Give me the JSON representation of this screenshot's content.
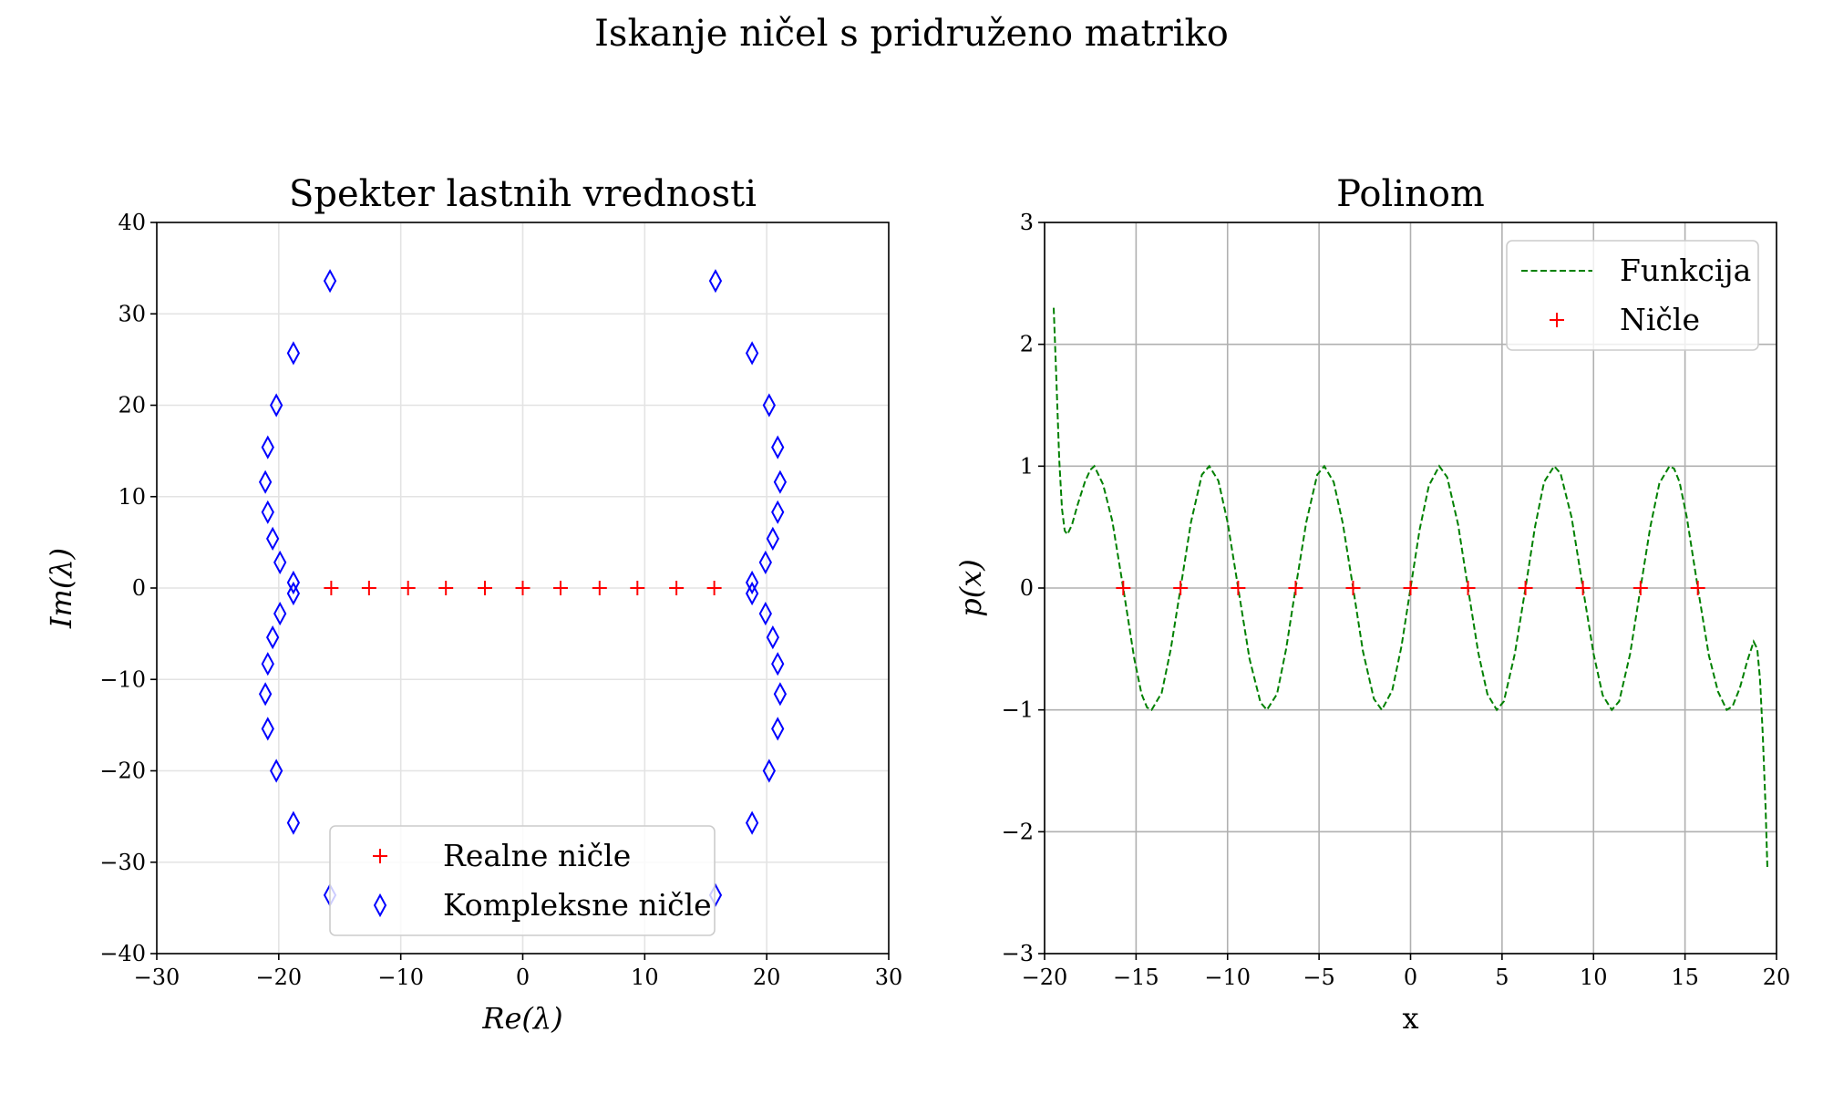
{
  "suptitle": "Iskanje ničel s pridruženo matriko",
  "chart_data": [
    {
      "type": "scatter",
      "title": "Spekter lastnih vrednosti",
      "xlabel": "Re(λ)",
      "ylabel": "Im(λ)",
      "xlim": [
        -30,
        30
      ],
      "ylim": [
        -40,
        40
      ],
      "xticks": [
        -30,
        -20,
        -10,
        0,
        10,
        20,
        30
      ],
      "yticks": [
        -40,
        -30,
        -20,
        -10,
        0,
        10,
        20,
        30,
        40
      ],
      "grid": true,
      "legend_position": "lower center",
      "series": [
        {
          "name": "Realne ničle",
          "marker": "plus",
          "color": "#ff0000",
          "points": [
            [
              -15.7,
              0
            ],
            [
              -12.6,
              0
            ],
            [
              -9.4,
              0
            ],
            [
              -6.3,
              0
            ],
            [
              -3.1,
              0
            ],
            [
              0,
              0
            ],
            [
              3.1,
              0
            ],
            [
              6.3,
              0
            ],
            [
              9.4,
              0
            ],
            [
              12.6,
              0
            ],
            [
              15.7,
              0
            ]
          ]
        },
        {
          "name": "Kompleksne ničle",
          "marker": "thin_diamond",
          "color": "#0000ff",
          "points": [
            [
              -15.8,
              33.6
            ],
            [
              -18.8,
              25.7
            ],
            [
              -20.2,
              20.0
            ],
            [
              -20.9,
              15.4
            ],
            [
              -21.1,
              11.6
            ],
            [
              -20.9,
              8.3
            ],
            [
              -20.5,
              5.4
            ],
            [
              -19.9,
              2.8
            ],
            [
              -18.8,
              0.6
            ],
            [
              -18.8,
              -0.6
            ],
            [
              -19.9,
              -2.8
            ],
            [
              -20.5,
              -5.4
            ],
            [
              -20.9,
              -8.3
            ],
            [
              -21.1,
              -11.6
            ],
            [
              -20.9,
              -15.4
            ],
            [
              -20.2,
              -20.0
            ],
            [
              -18.8,
              -25.7
            ],
            [
              -15.8,
              -33.6
            ],
            [
              15.8,
              33.6
            ],
            [
              18.8,
              25.7
            ],
            [
              20.2,
              20.0
            ],
            [
              20.9,
              15.4
            ],
            [
              21.1,
              11.6
            ],
            [
              20.9,
              8.3
            ],
            [
              20.5,
              5.4
            ],
            [
              19.9,
              2.8
            ],
            [
              18.8,
              0.6
            ],
            [
              18.8,
              -0.6
            ],
            [
              19.9,
              -2.8
            ],
            [
              20.5,
              -5.4
            ],
            [
              20.9,
              -8.3
            ],
            [
              21.1,
              -11.6
            ],
            [
              20.9,
              -15.4
            ],
            [
              20.2,
              -20.0
            ],
            [
              18.8,
              -25.7
            ],
            [
              15.8,
              -33.6
            ]
          ]
        }
      ]
    },
    {
      "type": "line",
      "title": "Polinom",
      "xlabel": "x",
      "ylabel": "p(x)",
      "xlim": [
        -20,
        20
      ],
      "ylim": [
        -3,
        3
      ],
      "xticks": [
        -20,
        -15,
        -10,
        -5,
        0,
        5,
        10,
        15,
        20
      ],
      "yticks": [
        -3,
        -2,
        -1,
        0,
        1,
        2,
        3
      ],
      "grid": true,
      "legend_position": "upper right",
      "series": [
        {
          "name": "Funkcija",
          "style": "dashed",
          "color": "#008000",
          "points": [
            [
              -19.5,
              2.3
            ],
            [
              -19.35,
              1.7
            ],
            [
              -19.2,
              1.05
            ],
            [
              -19.05,
              0.65
            ],
            [
              -18.9,
              0.47
            ],
            [
              -18.75,
              0.44
            ],
            [
              -18.5,
              0.52
            ],
            [
              -18.2,
              0.68
            ],
            [
              -17.8,
              0.87
            ],
            [
              -17.5,
              0.97
            ],
            [
              -17.28,
              1.0
            ],
            [
              -16.8,
              0.85
            ],
            [
              -16.3,
              0.55
            ],
            [
              -15.7,
              0.0
            ],
            [
              -15.1,
              -0.58
            ],
            [
              -14.7,
              -0.87
            ],
            [
              -14.4,
              -0.98
            ],
            [
              -14.15,
              -1.0
            ],
            [
              -13.6,
              -0.86
            ],
            [
              -13.1,
              -0.5
            ],
            [
              -12.57,
              0.0
            ],
            [
              -12.0,
              0.54
            ],
            [
              -11.4,
              0.93
            ],
            [
              -11.0,
              1.0
            ],
            [
              -10.5,
              0.88
            ],
            [
              -10.0,
              0.54
            ],
            [
              -9.42,
              0.0
            ],
            [
              -8.8,
              -0.58
            ],
            [
              -8.2,
              -0.94
            ],
            [
              -7.85,
              -1.0
            ],
            [
              -7.3,
              -0.87
            ],
            [
              -6.8,
              -0.5
            ],
            [
              -6.28,
              0.0
            ],
            [
              -5.7,
              0.54
            ],
            [
              -5.1,
              0.93
            ],
            [
              -4.71,
              1.0
            ],
            [
              -4.2,
              0.87
            ],
            [
              -3.7,
              0.53
            ],
            [
              -3.14,
              0.0
            ],
            [
              -2.6,
              -0.52
            ],
            [
              -2.0,
              -0.91
            ],
            [
              -1.57,
              -1.0
            ],
            [
              -1.0,
              -0.84
            ],
            [
              -0.5,
              -0.48
            ],
            [
              0.0,
              0.0
            ],
            [
              0.5,
              0.48
            ],
            [
              1.0,
              0.84
            ],
            [
              1.57,
              1.0
            ],
            [
              2.0,
              0.91
            ],
            [
              2.6,
              0.52
            ],
            [
              3.14,
              0.0
            ],
            [
              3.7,
              -0.53
            ],
            [
              4.2,
              -0.87
            ],
            [
              4.71,
              -1.0
            ],
            [
              5.1,
              -0.93
            ],
            [
              5.7,
              -0.54
            ],
            [
              6.28,
              0.0
            ],
            [
              6.8,
              0.5
            ],
            [
              7.3,
              0.87
            ],
            [
              7.85,
              1.0
            ],
            [
              8.2,
              0.94
            ],
            [
              8.8,
              0.58
            ],
            [
              9.42,
              0.0
            ],
            [
              10.0,
              -0.54
            ],
            [
              10.5,
              -0.88
            ],
            [
              11.0,
              -1.0
            ],
            [
              11.4,
              -0.93
            ],
            [
              12.0,
              -0.54
            ],
            [
              12.57,
              0.0
            ],
            [
              13.1,
              0.5
            ],
            [
              13.6,
              0.86
            ],
            [
              14.15,
              1.0
            ],
            [
              14.4,
              0.98
            ],
            [
              14.7,
              0.87
            ],
            [
              15.1,
              0.58
            ],
            [
              15.7,
              0.0
            ],
            [
              16.3,
              -0.55
            ],
            [
              16.8,
              -0.85
            ],
            [
              17.28,
              -1.0
            ],
            [
              17.6,
              -0.97
            ],
            [
              18.0,
              -0.82
            ],
            [
              18.4,
              -0.6
            ],
            [
              18.75,
              -0.44
            ],
            [
              18.95,
              -0.5
            ],
            [
              19.1,
              -0.75
            ],
            [
              19.25,
              -1.2
            ],
            [
              19.4,
              -1.8
            ],
            [
              19.5,
              -2.3
            ]
          ]
        },
        {
          "name": "Ničle",
          "marker": "plus",
          "color": "#ff0000",
          "points": [
            [
              -15.7,
              0
            ],
            [
              -12.57,
              0
            ],
            [
              -9.42,
              0
            ],
            [
              -6.28,
              0
            ],
            [
              -3.14,
              0
            ],
            [
              0,
              0
            ],
            [
              3.14,
              0
            ],
            [
              6.28,
              0
            ],
            [
              9.42,
              0
            ],
            [
              12.57,
              0
            ],
            [
              15.7,
              0
            ]
          ]
        }
      ]
    }
  ]
}
